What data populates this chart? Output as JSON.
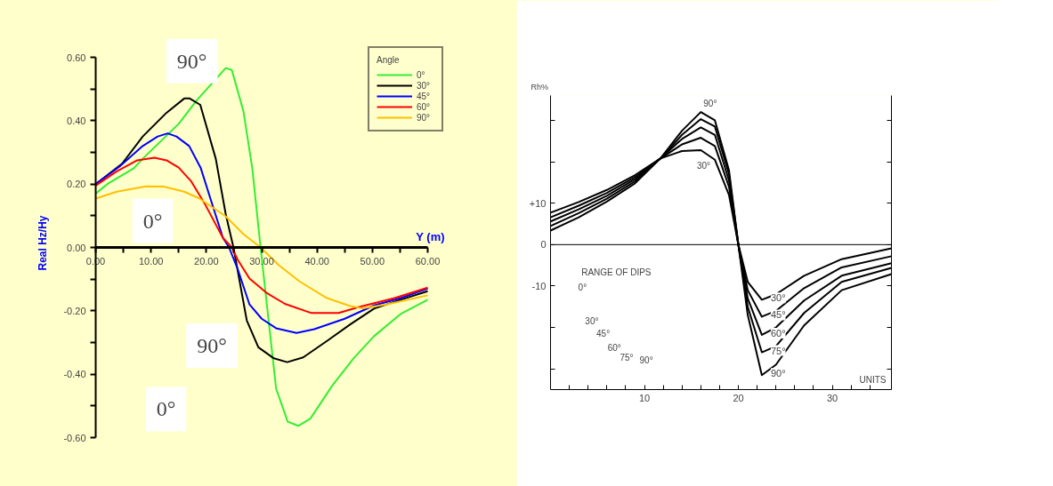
{
  "chart_data": [
    {
      "type": "line",
      "xlabel": "Y (m)",
      "ylabel": "Real Hz/Hy",
      "legend_title": "Angle",
      "legend": "top right",
      "marker": "none",
      "line_style": "solid",
      "grid": false,
      "xlim": [
        0,
        60
      ],
      "ylim": [
        -0.6,
        0.6
      ],
      "xticks": [
        {
          "value": 0,
          "label": "0.00"
        },
        {
          "value": 5,
          "label": null
        },
        {
          "value": 10,
          "label": "10.00"
        },
        {
          "value": 15,
          "label": null
        },
        {
          "value": 20,
          "label": "20.00"
        },
        {
          "value": 25,
          "label": null
        },
        {
          "value": 30,
          "label": "30.00"
        },
        {
          "value": 35,
          "label": null
        },
        {
          "value": 40,
          "label": "40.00"
        },
        {
          "value": 45,
          "label": null
        },
        {
          "value": 50,
          "label": "50.00"
        },
        {
          "value": 55,
          "label": null
        },
        {
          "value": 60,
          "label": "60.00"
        }
      ],
      "yticks": [
        {
          "value": -0.6,
          "label": "-0.60"
        },
        {
          "value": -0.5,
          "label": null
        },
        {
          "value": -0.4,
          "label": "-0.40"
        },
        {
          "value": -0.3,
          "label": null
        },
        {
          "value": -0.2,
          "label": "-0.20"
        },
        {
          "value": -0.1,
          "label": null
        },
        {
          "value": 0,
          "label": "0.00"
        },
        {
          "value": 0.1,
          "label": null
        },
        {
          "value": 0.2,
          "label": "0.20"
        },
        {
          "value": 0.3,
          "label": null
        },
        {
          "value": 0.4,
          "label": "0.40"
        },
        {
          "value": 0.5,
          "label": null
        },
        {
          "value": 0.6,
          "label": "0.60"
        }
      ],
      "series": [
        {
          "name": "0°",
          "color": "#33ee33",
          "x": [
            0,
            2.1,
            6.9,
            8.5,
            15,
            18.3,
            23.5,
            24.6,
            26.7,
            28.3,
            29.8,
            32.6,
            34.7,
            36.6,
            38.8,
            42.8,
            46.6,
            50.3,
            55.1,
            60
          ],
          "values": [
            0.17,
            0.2,
            0.25,
            0.28,
            0.39,
            0.465,
            0.566,
            0.56,
            0.43,
            0.25,
            0,
            -0.445,
            -0.55,
            -0.563,
            -0.54,
            -0.435,
            -0.35,
            -0.28,
            -0.21,
            -0.165
          ]
        },
        {
          "name": "30°",
          "color": "#000000",
          "x": [
            0,
            4.8,
            8.5,
            12.8,
            16,
            17,
            18.9,
            21.7,
            23.5,
            24.9,
            27.3,
            29.4,
            32.2,
            34.6,
            37.5,
            41.8,
            46,
            50.3,
            55.1,
            60
          ],
          "values": [
            0.2,
            0.265,
            0.35,
            0.425,
            0.47,
            0.47,
            0.45,
            0.28,
            0.105,
            0,
            -0.23,
            -0.315,
            -0.35,
            -0.362,
            -0.347,
            -0.295,
            -0.243,
            -0.193,
            -0.165,
            -0.138
          ]
        },
        {
          "name": "45°",
          "color": "#0000ff",
          "x": [
            0,
            4.3,
            8.5,
            11.2,
            13,
            14.6,
            16.9,
            19,
            20.9,
            23,
            24.1,
            25.7,
            27.8,
            30,
            32.6,
            36.3,
            39.5,
            45,
            50.3,
            55.1,
            60
          ],
          "values": [
            0.2,
            0.255,
            0.32,
            0.35,
            0.36,
            0.35,
            0.32,
            0.25,
            0.145,
            0.03,
            0,
            -0.07,
            -0.18,
            -0.225,
            -0.255,
            -0.27,
            -0.258,
            -0.225,
            -0.183,
            -0.16,
            -0.13
          ]
        },
        {
          "name": "60°",
          "color": "#ff0000",
          "x": [
            0,
            3.8,
            7.5,
            10.6,
            12.8,
            15,
            17.2,
            19.8,
            23,
            24.6,
            25.7,
            27.8,
            31,
            34.2,
            39,
            43.9,
            47.6,
            54,
            60
          ],
          "values": [
            0.195,
            0.24,
            0.275,
            0.283,
            0.275,
            0.252,
            0.21,
            0.135,
            0.03,
            0,
            -0.04,
            -0.098,
            -0.145,
            -0.178,
            -0.207,
            -0.207,
            -0.188,
            -0.16,
            -0.127
          ]
        },
        {
          "name": "90°",
          "color": "#ffc000",
          "x": [
            0,
            3.8,
            9.1,
            12.3,
            16,
            18.7,
            23.5,
            26.7,
            29.8,
            33.1,
            36.9,
            41.8,
            46,
            48.2,
            52.5,
            60
          ],
          "values": [
            0.154,
            0.176,
            0.193,
            0.192,
            0.176,
            0.155,
            0.098,
            0.042,
            0,
            -0.056,
            -0.108,
            -0.16,
            -0.185,
            -0.192,
            -0.18,
            -0.151
          ]
        }
      ],
      "annotations": [
        "90°",
        "0°",
        "90°",
        "0°"
      ]
    },
    {
      "type": "line",
      "xlabel": "UNITS",
      "ylabel": "Rh%",
      "marker": "none",
      "line_style": "solid",
      "grid": false,
      "xlim": [
        0,
        36.3
      ],
      "ylim": [
        -35,
        36
      ],
      "xticks": [
        {
          "value": 2,
          "label": null
        },
        {
          "value": 4,
          "label": null
        },
        {
          "value": 6,
          "label": null
        },
        {
          "value": 8,
          "label": null
        },
        10,
        {
          "value": 12,
          "label": null
        },
        {
          "value": 14,
          "label": null
        },
        {
          "value": 16,
          "label": null
        },
        {
          "value": 18,
          "label": null
        },
        20,
        {
          "value": 22,
          "label": null
        },
        {
          "value": 24,
          "label": null
        },
        {
          "value": 26,
          "label": null
        },
        {
          "value": 28,
          "label": null
        },
        30,
        {
          "value": 32,
          "label": null
        },
        {
          "value": 34,
          "label": null
        }
      ],
      "yticks": [
        {
          "value": -30,
          "label": null
        },
        {
          "value": -20,
          "label": null
        },
        -10,
        0,
        {
          "value": 10,
          "label": "+10"
        },
        {
          "value": 20,
          "label": null
        },
        {
          "value": 30,
          "label": null
        }
      ],
      "ref_lines": [
        {
          "axis": "y",
          "value": 0,
          "color": "#000000"
        }
      ],
      "series": [
        {
          "name": "30°",
          "color": "#000000",
          "x": [
            0,
            3,
            6,
            9,
            11.7,
            14,
            16,
            17.5,
            19,
            20,
            21,
            22.5,
            24,
            27,
            31,
            36.3
          ],
          "values": [
            7.7,
            10.3,
            13.2,
            16.8,
            20.8,
            22.6,
            22.8,
            20.5,
            12,
            0,
            -9,
            -13.3,
            -12,
            -7.5,
            -3.5,
            -0.9
          ]
        },
        {
          "name": "45°",
          "color": "#000000",
          "x": [
            0,
            3,
            6,
            9,
            11.7,
            14,
            16,
            17.5,
            19,
            20,
            21,
            22.5,
            24,
            27,
            31,
            36.3
          ],
          "values": [
            6.6,
            9.4,
            12.5,
            16.3,
            20.8,
            24.2,
            25.8,
            23.8,
            14,
            0,
            -11,
            -17.4,
            -16,
            -10.5,
            -5.5,
            -2.8
          ]
        },
        {
          "name": "60°",
          "color": "#000000",
          "x": [
            0,
            3,
            6,
            9,
            11.7,
            14,
            16,
            17.5,
            19,
            20,
            21,
            22.5,
            24,
            27,
            31,
            36.3
          ],
          "values": [
            5.6,
            8.5,
            11.8,
            15.8,
            20.8,
            25.5,
            28.3,
            26.5,
            15.5,
            0,
            -13,
            -21.8,
            -20,
            -13.5,
            -7.5,
            -4.5
          ]
        },
        {
          "name": "75°",
          "color": "#000000",
          "x": [
            0,
            3,
            6,
            9,
            11.7,
            14,
            16,
            17.5,
            19,
            20,
            21,
            22.5,
            24,
            27,
            31,
            36.3
          ],
          "values": [
            4.5,
            7.6,
            11.1,
            15.3,
            20.8,
            26.5,
            30.3,
            28.5,
            17,
            0,
            -15,
            -26,
            -24.5,
            -16.5,
            -9,
            -5.6
          ]
        },
        {
          "name": "90°",
          "color": "#000000",
          "x": [
            0,
            3,
            6,
            9,
            11.7,
            14,
            16,
            17.5,
            19,
            20,
            21,
            22.5,
            24,
            27,
            31,
            36.3
          ],
          "values": [
            3.4,
            6.6,
            10.4,
            14.8,
            20.8,
            27.5,
            32,
            30,
            18,
            0,
            -17,
            -31.5,
            -29,
            -19.5,
            -11,
            -7.1
          ]
        }
      ],
      "annotations": [
        "90°",
        "30°",
        "RANGE OF DIPS",
        "0°",
        "30°",
        "45°",
        "60°",
        "75°",
        "90°"
      ]
    }
  ]
}
